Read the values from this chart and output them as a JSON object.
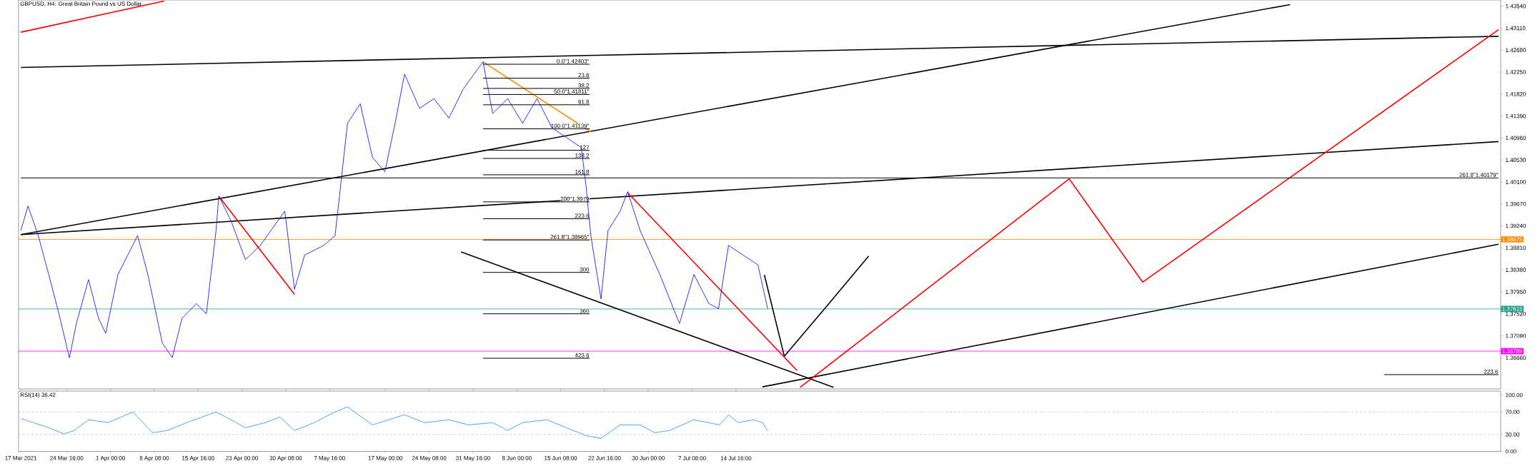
{
  "chart_data": [
    {
      "type": "line",
      "title": "GBPUSD, H4:  Great Britain Pound vs US Dollar",
      "xlim": [
        "2021-03-16T15:00",
        "2021-11-19T15:00"
      ],
      "ylim": [
        1.3605,
        1.4366
      ],
      "tick_labels": "y",
      "xticks": [
        "2021-03-17T00:00",
        "2021-03-24T16:00",
        "2021-04-01T00:00",
        "2021-04-08T08:00",
        "2021-04-15T16:00",
        "2021-04-23T00:00",
        "2021-04-30T08:00",
        "2021-05-07T16:00",
        "2021-05-17T00:00",
        "2021-05-24T08:00",
        "2021-05-31T16:00",
        "2021-06-08T00:00",
        "2021-06-15T08:00",
        "2021-06-22T16:00",
        "2021-06-30T00:00",
        "2021-07-07T08:00",
        "2021-07-14T16:00"
      ],
      "yticks": [
        {
          "value": 1.3666,
          "label": "1.36660"
        },
        {
          "value": 1.3709,
          "label": "1.37090"
        },
        {
          "value": 1.3752,
          "label": "1.37520"
        },
        {
          "value": 1.3795,
          "label": "1.37950"
        },
        {
          "value": 1.3838,
          "label": "1.38380"
        },
        {
          "value": 1.3881,
          "label": "1.38810"
        },
        {
          "value": 1.3924,
          "label": "1.39240"
        },
        {
          "value": 1.3967,
          "label": "1.39670"
        },
        {
          "value": 1.401,
          "label": "1.40100"
        },
        {
          "value": 1.4053,
          "label": "1.40530"
        },
        {
          "value": 1.4096,
          "label": "1.40960"
        },
        {
          "value": 1.4139,
          "label": "1.41390"
        },
        {
          "value": 1.4182,
          "label": "1.41820"
        },
        {
          "value": 1.4225,
          "label": "1.42250"
        },
        {
          "value": 1.4268,
          "label": "1.42680"
        },
        {
          "value": 1.4311,
          "label": "1.43110"
        },
        {
          "value": 1.4354,
          "label": "1.43540"
        }
      ],
      "series": [
        {
          "color": "#0000ff",
          "x": [
            "2021-03-17T00:00",
            "2021-03-18T05:00",
            "2021-03-19T22:00",
            "2021-03-21T16:00",
            "2021-03-23T09:00",
            "2021-03-25T03:00",
            "2021-03-26T07:00",
            "2021-03-28T08:00",
            "2021-03-30T00:00",
            "2021-03-31T05:00",
            "2021-04-02T06:00",
            "2021-04-05T13:00",
            "2021-04-07T06:00",
            "2021-04-09T16:00",
            "2021-04-11T08:00",
            "2021-04-12T23:00",
            "2021-04-15T09:00",
            "2021-04-17T01:00",
            "2021-04-18T16:00",
            "2021-04-19T03:00",
            "2021-04-21T04:00",
            "2021-04-23T14:00",
            "2021-04-26T02:00",
            "2021-04-30T04:00",
            "2021-05-01T19:00",
            "2021-05-03T12:00",
            "2021-05-06T17:00",
            "2021-05-08T14:00",
            "2021-05-10T16:00",
            "2021-05-12T19:00",
            "2021-05-14T20:00",
            "2021-05-16T22:00",
            "2021-05-18T15:00",
            "2021-05-20T05:00",
            "2021-05-22T17:00",
            "2021-05-25T03:00",
            "2021-05-27T15:00",
            "2021-05-30T01:00",
            "2021-06-02T08:00",
            "2021-06-03T23:00",
            "2021-06-06T11:00",
            "2021-06-08T23:00",
            "2021-06-11T09:00",
            "2021-06-13T21:00",
            "2021-06-16T07:00",
            "2021-06-18T19:00",
            "2021-06-19T14:00",
            "2021-06-20T09:00",
            "2021-06-22T02:00",
            "2021-06-23T06:00",
            "2021-06-25T07:00",
            "2021-06-26T13:00",
            "2021-06-28T15:00",
            "2021-07-01T22:00",
            "2021-07-05T05:00",
            "2021-07-07T15:00",
            "2021-07-10T03:00",
            "2021-07-11T18:00",
            "2021-07-13T10:00",
            "2021-07-15T20:00",
            "2021-07-18T08:00",
            "2021-07-19T23:00"
          ],
          "values": [
            1.3915,
            1.3963,
            1.3905,
            1.3829,
            1.3752,
            1.3666,
            1.3733,
            1.3819,
            1.3743,
            1.3714,
            1.3829,
            1.3905,
            1.3829,
            1.3695,
            1.3666,
            1.3743,
            1.3772,
            1.3752,
            1.3915,
            1.3982,
            1.3934,
            1.3858,
            1.3886,
            1.3953,
            1.38,
            1.3867,
            1.3886,
            1.3905,
            1.4125,
            1.4163,
            1.4058,
            1.403,
            1.4125,
            1.4221,
            1.4154,
            1.4173,
            1.4135,
            1.4192,
            1.4245,
            1.4144,
            1.4173,
            1.4125,
            1.4173,
            1.4116,
            1.4097,
            1.4077,
            1.4001,
            1.3905,
            1.3781,
            1.3915,
            1.3953,
            1.3991,
            1.3915,
            1.3829,
            1.3733,
            1.3829,
            1.3772,
            1.3762,
            1.3886,
            1.3867,
            1.3848,
            1.3762
          ]
        },
        {
          "color": "#000000",
          "x": [
            "2021-03-17T00:00",
            "2021-11-19T06:00"
          ],
          "values": [
            1.3907,
            1.4089
          ]
        },
        {
          "color": "#000000",
          "x": [
            "2021-03-17T00:00",
            "2021-10-15T09:00"
          ],
          "values": [
            1.3907,
            1.4357
          ]
        },
        {
          "color": "#000000",
          "x": [
            "2021-03-17T00:00",
            "2021-11-19T06:00"
          ],
          "values": [
            1.4234,
            1.4295
          ]
        },
        {
          "color": "#000000",
          "x": [
            "2021-07-19T02:00",
            "2021-11-19T06:00"
          ],
          "values": [
            1.3609,
            1.3888
          ]
        },
        {
          "color": "#000000",
          "x": [
            "2021-05-29T16:00",
            "2021-07-31T00:00"
          ],
          "values": [
            1.3873,
            1.3608
          ]
        },
        {
          "color": "#000000",
          "x": [
            "2021-07-19T10:00",
            "2021-07-22T18:00",
            "2021-07-29T17:00",
            "2021-08-05T21:00"
          ],
          "values": [
            1.3828,
            1.3669,
            1.3765,
            1.3865
          ]
        },
        {
          "color": "#ff0000",
          "x": [
            "2021-03-17T00:00",
            "2021-04-09T23:00"
          ],
          "values": [
            1.4303,
            1.4364
          ]
        },
        {
          "color": "#ff0000",
          "x": [
            "2021-04-19T03:00",
            "2021-05-01T19:00"
          ],
          "values": [
            1.3982,
            1.379
          ]
        },
        {
          "color": "#ff0000",
          "x": [
            "2021-06-26T13:00",
            "2021-07-24T21:00"
          ],
          "values": [
            1.3989,
            1.3641
          ]
        },
        {
          "color": "#ff0000",
          "x": [
            "2021-07-25T09:00",
            "2021-09-08T10:00",
            "2021-09-20T17:00",
            "2021-11-19T06:00"
          ],
          "values": [
            1.3608,
            1.4016,
            1.3814,
            1.4308
          ]
        },
        {
          "color": "#ff8c00",
          "x": [
            "2021-06-02T08:00",
            "2021-06-20T09:00"
          ],
          "values": [
            1.4245,
            1.4108
          ]
        },
        {
          "name": "0.0\"1.42403\"",
          "color": "#000000",
          "x": [
            "2021-06-02T08:00",
            "2021-06-20T04:00"
          ],
          "values": [
            1.42403,
            1.42403
          ]
        },
        {
          "name": "23.6",
          "color": "#000000",
          "x": [
            "2021-06-02T08:00",
            "2021-06-20T04:00"
          ],
          "values": [
            1.4213,
            1.4213
          ]
        },
        {
          "name": "38.2",
          "color": "#000000",
          "x": [
            "2021-06-02T08:00",
            "2021-06-20T04:00"
          ],
          "values": [
            1.4193,
            1.4193
          ]
        },
        {
          "name": "50.0\"1.41811\"",
          "color": "#000000",
          "x": [
            "2021-06-02T08:00",
            "2021-06-20T04:00"
          ],
          "values": [
            1.41811,
            1.41811
          ]
        },
        {
          "name": "61.8",
          "color": "#000000",
          "x": [
            "2021-06-02T08:00",
            "2021-06-20T04:00"
          ],
          "values": [
            1.4161,
            1.4161
          ]
        },
        {
          "name": "100.0\"1.41139\"",
          "color": "#000000",
          "x": [
            "2021-06-02T08:00",
            "2021-06-20T04:00"
          ],
          "values": [
            1.41139,
            1.41139
          ]
        },
        {
          "name": "127",
          "color": "#000000",
          "x": [
            "2021-06-02T08:00",
            "2021-06-20T04:00"
          ],
          "values": [
            1.4072,
            1.4072
          ]
        },
        {
          "name": "138.2",
          "color": "#000000",
          "x": [
            "2021-06-02T08:00",
            "2021-06-20T04:00"
          ],
          "values": [
            1.4056,
            1.4056
          ]
        },
        {
          "name": "161.8",
          "color": "#000000",
          "x": [
            "2021-06-02T08:00",
            "2021-06-20T04:00"
          ],
          "values": [
            1.4024,
            1.4024
          ]
        },
        {
          "name": "200\"1.3979",
          "color": "#000000",
          "x": [
            "2021-06-02T08:00",
            "2021-06-20T04:00"
          ],
          "values": [
            1.3971,
            1.3971
          ]
        },
        {
          "name": "223.6",
          "color": "#000000",
          "x": [
            "2021-06-02T08:00",
            "2021-06-20T04:00"
          ],
          "values": [
            1.3938,
            1.3938
          ]
        },
        {
          "name": "261.8\"1.38965\"",
          "color": "#000000",
          "x": [
            "2021-06-02T08:00",
            "2021-06-20T04:00"
          ],
          "values": [
            1.38965,
            1.38965
          ]
        },
        {
          "name": "300",
          "color": "#000000",
          "x": [
            "2021-06-02T08:00",
            "2021-06-20T04:00"
          ],
          "values": [
            1.3833,
            1.3833
          ]
        },
        {
          "name": "360",
          "color": "#000000",
          "x": [
            "2021-06-02T08:00",
            "2021-06-20T04:00"
          ],
          "values": [
            1.3752,
            1.3752
          ]
        },
        {
          "name": "423.6",
          "color": "#000000",
          "x": [
            "2021-06-02T08:00",
            "2021-06-20T04:00"
          ],
          "values": [
            1.3665,
            1.3665
          ]
        },
        {
          "name": "261.8\"1.40179\"",
          "color": "#000000",
          "x": [
            "2021-03-17T00:00",
            "2021-11-19T06:00"
          ],
          "values": [
            1.40179,
            1.40179
          ]
        },
        {
          "name": "223.6",
          "color": "#000000",
          "x": [
            "2021-10-31T02:00",
            "2021-11-19T06:00"
          ],
          "values": [
            1.3633,
            1.3633
          ]
        }
      ],
      "ref_lines": [
        {
          "axis": "y",
          "value": 1.38975,
          "label": "1.38975",
          "color": "#ff8c00"
        },
        {
          "axis": "y",
          "value": 1.37615,
          "label": "1.37615",
          "color": "#20a090"
        },
        {
          "axis": "y",
          "value": 1.36789,
          "label": "1.36789",
          "color": "#ff00ff"
        }
      ]
    },
    {
      "type": "line",
      "title": "RSI(14) 36.42",
      "xlim": [
        "2021-03-16T15:00",
        "2021-11-19T15:00"
      ],
      "ylim": [
        0,
        107
      ],
      "xticks": [
        {
          "value": "2021-03-17T00:00",
          "label": "17 Mar 2021"
        },
        {
          "value": "2021-03-24T16:00",
          "label": "24 Mar 16:00"
        },
        {
          "value": "2021-04-01T00:00",
          "label": "1 Apr 00:00"
        },
        {
          "value": "2021-04-08T08:00",
          "label": "8 Apr 08:00"
        },
        {
          "value": "2021-04-15T16:00",
          "label": "15 Apr 16:00"
        },
        {
          "value": "2021-04-23T00:00",
          "label": "23 Apr 00:00"
        },
        {
          "value": "2021-04-30T08:00",
          "label": "30 Apr 08:00"
        },
        {
          "value": "2021-05-07T16:00",
          "label": "7 May 16:00"
        },
        {
          "value": "2021-05-17T00:00",
          "label": "17 May 00:00"
        },
        {
          "value": "2021-05-24T08:00",
          "label": "24 May 08:00"
        },
        {
          "value": "2021-05-31T16:00",
          "label": "31 May 16:00"
        },
        {
          "value": "2021-06-08T00:00",
          "label": "8 Jun 00:00"
        },
        {
          "value": "2021-06-15T08:00",
          "label": "15 Jun 08:00"
        },
        {
          "value": "2021-06-22T16:00",
          "label": "22 Jun 16:00"
        },
        {
          "value": "2021-06-30T00:00",
          "label": "30 Jun 00:00"
        },
        {
          "value": "2021-07-07T08:00",
          "label": "7 Jul 08:00"
        },
        {
          "value": "2021-07-14T16:00",
          "label": "14 Jul 16:00"
        }
      ],
      "yticks": [
        {
          "value": 0,
          "label": "0.00"
        },
        {
          "value": 30,
          "label": "30.00"
        },
        {
          "value": 70,
          "label": "70.00"
        },
        {
          "value": 100,
          "label": "100.00"
        }
      ],
      "series": [
        {
          "color": "#1e90ff",
          "x": [
            "2021-03-17T00:00",
            "2021-03-19T02:00",
            "2021-03-21T16:00",
            "2021-03-24T05:00",
            "2021-03-25T22:00",
            "2021-03-28T08:00",
            "2021-03-31T15:00",
            "2021-04-04T18:00",
            "2021-04-08T01:00",
            "2021-04-10T11:00",
            "2021-04-13T18:00",
            "2021-04-18T16:00",
            "2021-04-21T04:00",
            "2021-04-23T14:00",
            "2021-04-26T21:00",
            "2021-04-29T09:00",
            "2021-05-01T19:00",
            "2021-05-05T02:00",
            "2021-05-08T14:00",
            "2021-05-10T16:00",
            "2021-05-14T20:00",
            "2021-05-20T05:00",
            "2021-05-23T13:00",
            "2021-05-27T15:00",
            "2021-05-30T22:00",
            "2021-06-03T23:00",
            "2021-06-06T11:00",
            "2021-06-08T23:00",
            "2021-06-13T01:00",
            "2021-06-16T07:00",
            "2021-06-19T14:00",
            "2021-06-22T02:00",
            "2021-06-25T07:00",
            "2021-06-28T15:00",
            "2021-07-01T02:00",
            "2021-07-03T12:00",
            "2021-07-07T15:00",
            "2021-07-11T22:00",
            "2021-07-13T10:00",
            "2021-07-15T01:00",
            "2021-07-17T13:00",
            "2021-07-19T03:00",
            "2021-07-19T23:00"
          ],
          "values": [
            58,
            51,
            42,
            31,
            37,
            56,
            51,
            70,
            33,
            37,
            51,
            70,
            56,
            42,
            51,
            61,
            37,
            51,
            70,
            79,
            47,
            65,
            51,
            56,
            47,
            51,
            37,
            51,
            56,
            42,
            28,
            23,
            47,
            47,
            33,
            37,
            56,
            47,
            65,
            51,
            56,
            51,
            37
          ]
        }
      ],
      "ref_lines": [
        {
          "axis": "y",
          "value": 70,
          "color": "#c0c0c0",
          "line_style": "dashed"
        },
        {
          "axis": "y",
          "value": 30,
          "color": "#c0c0c0",
          "line_style": "dashed"
        }
      ]
    }
  ]
}
